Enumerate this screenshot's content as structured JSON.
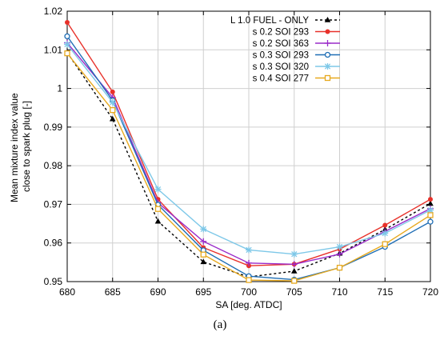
{
  "chart_data": {
    "type": "line",
    "xlabel": "SA [deg. ATDC]",
    "ylabel_lines": [
      "Mean mixture index value",
      "close to spark plug [-]"
    ],
    "xlim": [
      680,
      720
    ],
    "ylim": [
      0.95,
      1.02
    ],
    "x_ticks": [
      680,
      685,
      690,
      695,
      700,
      705,
      710,
      715,
      720
    ],
    "y_ticks": [
      0.95,
      0.96,
      0.97,
      0.98,
      0.99,
      1.0,
      1.01,
      1.02
    ],
    "x_tick_labels": [
      "680",
      "685",
      "690",
      "695",
      "700",
      "705",
      "710",
      "715",
      "720"
    ],
    "y_tick_labels": [
      "0.95",
      "0.96",
      "0.97",
      "0.98",
      "0.99",
      "1",
      "1.01",
      "1.02"
    ],
    "grid": true,
    "legend_position": "top-right",
    "x": [
      680,
      685,
      690,
      695,
      700,
      705,
      710,
      715,
      720
    ],
    "series": [
      {
        "name": "L 1.0 FUEL - ONLY",
        "color": "#000000",
        "marker": "triangle",
        "dashed": true,
        "values": [
          1.0093,
          0.9921,
          0.9656,
          0.9551,
          0.9512,
          0.9527,
          0.9573,
          0.9635,
          0.9702
        ]
      },
      {
        "name": "s 0.2 SOI 293",
        "color": "#e8312a",
        "marker": "circle-filled",
        "dashed": false,
        "values": [
          1.0171,
          0.9991,
          0.9713,
          0.9588,
          0.9541,
          0.9545,
          0.9584,
          0.9646,
          0.9713
        ]
      },
      {
        "name": "s 0.2 SOI 363",
        "color": "#9a2bc9",
        "marker": "plus",
        "dashed": false,
        "values": [
          1.0118,
          0.9977,
          0.9704,
          0.9604,
          0.9548,
          0.9545,
          0.9571,
          0.963,
          0.9689
        ]
      },
      {
        "name": "s 0.3 SOI 293",
        "color": "#1f6eb5",
        "marker": "circle-open",
        "dashed": false,
        "values": [
          1.0135,
          0.9969,
          0.9699,
          0.9581,
          0.9514,
          0.9505,
          0.9536,
          0.959,
          0.9655
        ]
      },
      {
        "name": "s 0.3 SOI 320",
        "color": "#7ec8e8",
        "marker": "star",
        "dashed": false,
        "values": [
          1.0114,
          0.9964,
          0.9739,
          0.9636,
          0.9582,
          0.9571,
          0.959,
          0.9625,
          0.9685
        ]
      },
      {
        "name": "s 0.4 SOI 277",
        "color": "#e7a91e",
        "marker": "square-open",
        "dashed": false,
        "values": [
          1.0091,
          0.9944,
          0.9688,
          0.957,
          0.9504,
          0.9502,
          0.9536,
          0.9597,
          0.9672
        ]
      }
    ]
  },
  "caption": "(a)"
}
